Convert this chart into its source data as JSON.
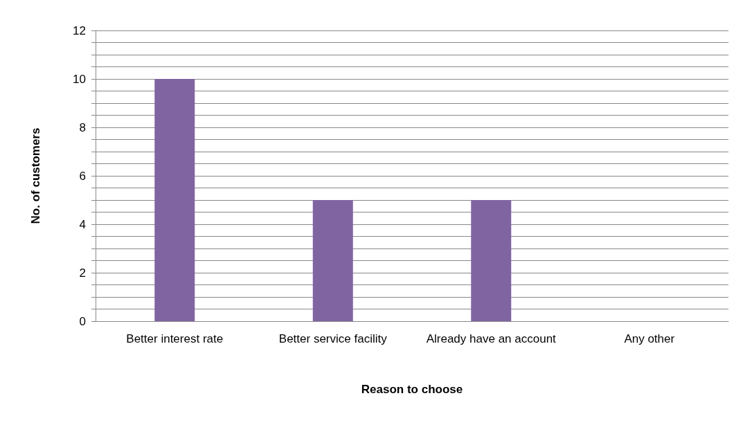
{
  "chart_data": {
    "type": "bar",
    "xlabel": "Reason to choose",
    "ylabel": "No. of customers",
    "categories": [
      "Better interest rate",
      "Better service facility",
      "Already have an account",
      "Any other"
    ],
    "values": [
      10,
      5,
      5,
      0
    ],
    "color": "#8064a2",
    "ylim": [
      0,
      12
    ],
    "yticks": [
      0,
      {
        "value": 0.5,
        "label": null
      },
      {
        "value": 1,
        "label": null
      },
      {
        "value": 1.5,
        "label": null
      },
      2,
      {
        "value": 2.5,
        "label": null
      },
      {
        "value": 3,
        "label": null
      },
      {
        "value": 3.5,
        "label": null
      },
      4,
      {
        "value": 4.5,
        "label": null
      },
      {
        "value": 5,
        "label": null
      },
      {
        "value": 5.5,
        "label": null
      },
      6,
      {
        "value": 6.5,
        "label": null
      },
      {
        "value": 7,
        "label": null
      },
      {
        "value": 7.5,
        "label": null
      },
      8,
      {
        "value": 8.5,
        "label": null
      },
      {
        "value": 9,
        "label": null
      },
      {
        "value": 9.5,
        "label": null
      },
      10,
      {
        "value": 10.5,
        "label": null
      },
      {
        "value": 11,
        "label": null
      },
      {
        "value": 11.5,
        "label": null
      },
      12
    ],
    "grid": "y"
  }
}
